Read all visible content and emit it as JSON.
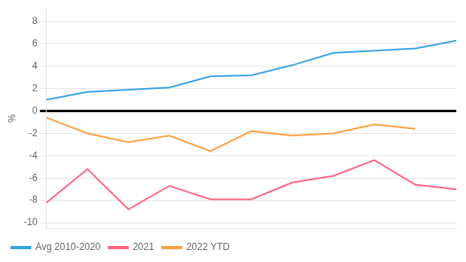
{
  "chart_data": {
    "type": "line",
    "ylabel": "%",
    "categories": [
      null,
      null,
      null,
      null,
      null,
      null,
      null,
      null,
      null,
      null,
      null
    ],
    "series": [
      {
        "name": "Avg 2010-2020",
        "values": [
          1.0,
          1.7,
          1.9,
          2.1,
          3.1,
          3.2,
          4.1,
          5.2,
          5.4,
          5.6,
          6.3
        ]
      },
      {
        "name": "2021",
        "values": [
          -8.2,
          -5.2,
          -8.8,
          -6.7,
          -7.9,
          -7.9,
          -6.4,
          -5.8,
          -4.4,
          -6.6,
          -7.0
        ]
      },
      {
        "name": "2022 YTD",
        "values": [
          -0.6,
          -2.0,
          -2.8,
          -2.2,
          -3.6,
          -1.8,
          -2.2,
          -2.0,
          -1.2,
          -1.6,
          null
        ]
      }
    ],
    "ylim": [
      -10.5,
      9.2
    ],
    "yticks": [
      -10,
      -8,
      -6,
      -4,
      -2,
      0,
      2,
      4,
      6,
      8
    ],
    "grid": true,
    "legend": "lower left",
    "tick_labels": "y"
  }
}
